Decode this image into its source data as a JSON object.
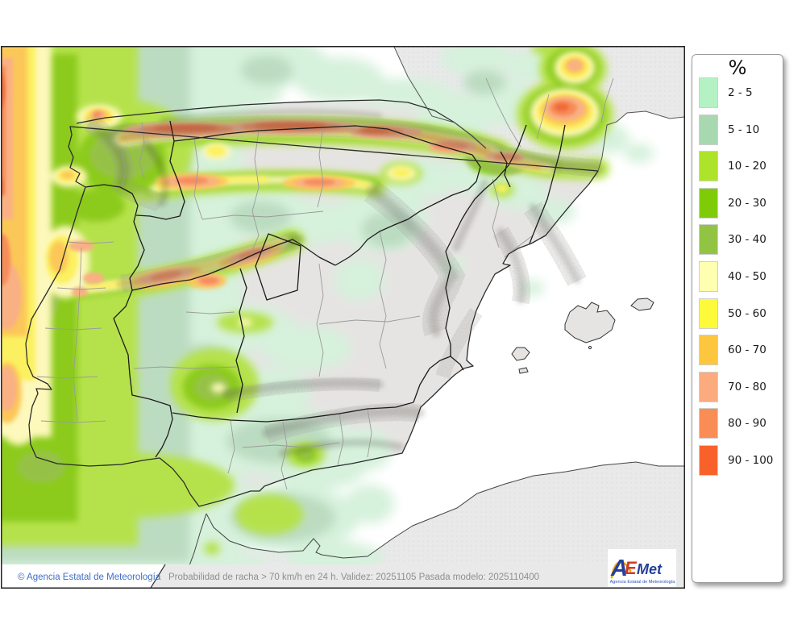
{
  "legend": {
    "title": "%",
    "items": [
      {
        "label": "2 - 5",
        "color": "#b4f2c4"
      },
      {
        "label": "5 - 10",
        "color": "#a8d8b0"
      },
      {
        "label": "10 - 20",
        "color": "#aee32b"
      },
      {
        "label": "20 - 30",
        "color": "#80cb08"
      },
      {
        "label": "30 - 40",
        "color": "#92c443"
      },
      {
        "label": "40 - 50",
        "color": "#ffffb2"
      },
      {
        "label": "50 - 60",
        "color": "#fdfa3c"
      },
      {
        "label": "60 - 70",
        "color": "#fdc63f"
      },
      {
        "label": "70 - 80",
        "color": "#fbab7e"
      },
      {
        "label": "80 - 90",
        "color": "#f98d55"
      },
      {
        "label": "90 - 100",
        "color": "#f8622a"
      }
    ]
  },
  "footer": {
    "copyright": "© Agencia Estatal de Meteorología",
    "description": "Probabilidad de racha > 70 km/h en 24 h. Validez: 20251105 Pasada modelo: 2025110400"
  },
  "logo": {
    "letter_a": "A",
    "letter_e": "E",
    "letters_met": "Met",
    "subtitle": "Agencia Estatal de Meteorología"
  }
}
